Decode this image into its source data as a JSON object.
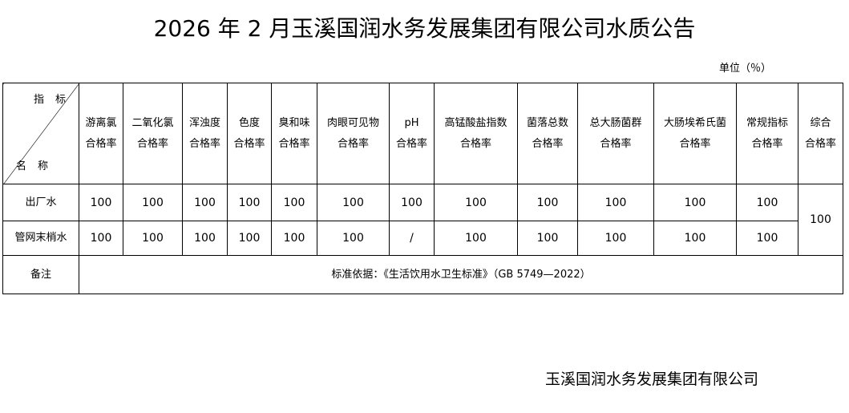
{
  "title": "2026 年 2 月玉溪国润水务发展集团有限公司水质公告",
  "unit": "单位（％）",
  "table": {
    "corner_top": "指标",
    "corner_bottom": "名称",
    "headers": [
      [
        "游离氯",
        "合格率"
      ],
      [
        "二氧化氯",
        "合格率"
      ],
      [
        "浑浊度",
        "合格率"
      ],
      [
        "色度",
        "合格率"
      ],
      [
        "臭和味",
        "合格率"
      ],
      [
        "肉眼可见物",
        "合格率"
      ],
      [
        "pH",
        "合格率"
      ],
      [
        "高锰酸盐指数",
        "合格率"
      ],
      [
        "菌落总数",
        "合格率"
      ],
      [
        "总大肠菌群",
        "合格率"
      ],
      [
        "大肠埃希氏菌",
        "合格率"
      ],
      [
        "常规指标",
        "合格率"
      ],
      [
        "综合",
        "合格率"
      ]
    ],
    "rows": [
      {
        "name": "出厂水",
        "values": [
          "100",
          "100",
          "100",
          "100",
          "100",
          "100",
          "100",
          "100",
          "100",
          "100",
          "100",
          "100"
        ]
      },
      {
        "name": "管网末梢水",
        "values": [
          "100",
          "100",
          "100",
          "100",
          "100",
          "100",
          "/",
          "100",
          "100",
          "100",
          "100",
          "100"
        ]
      }
    ],
    "overall": "100",
    "remark_label": "备注",
    "remark_text": "标准依据：《生活饮用水卫生标准》（GB 5749—2022）"
  },
  "signature": "玉溪国润水务发展集团有限公司"
}
